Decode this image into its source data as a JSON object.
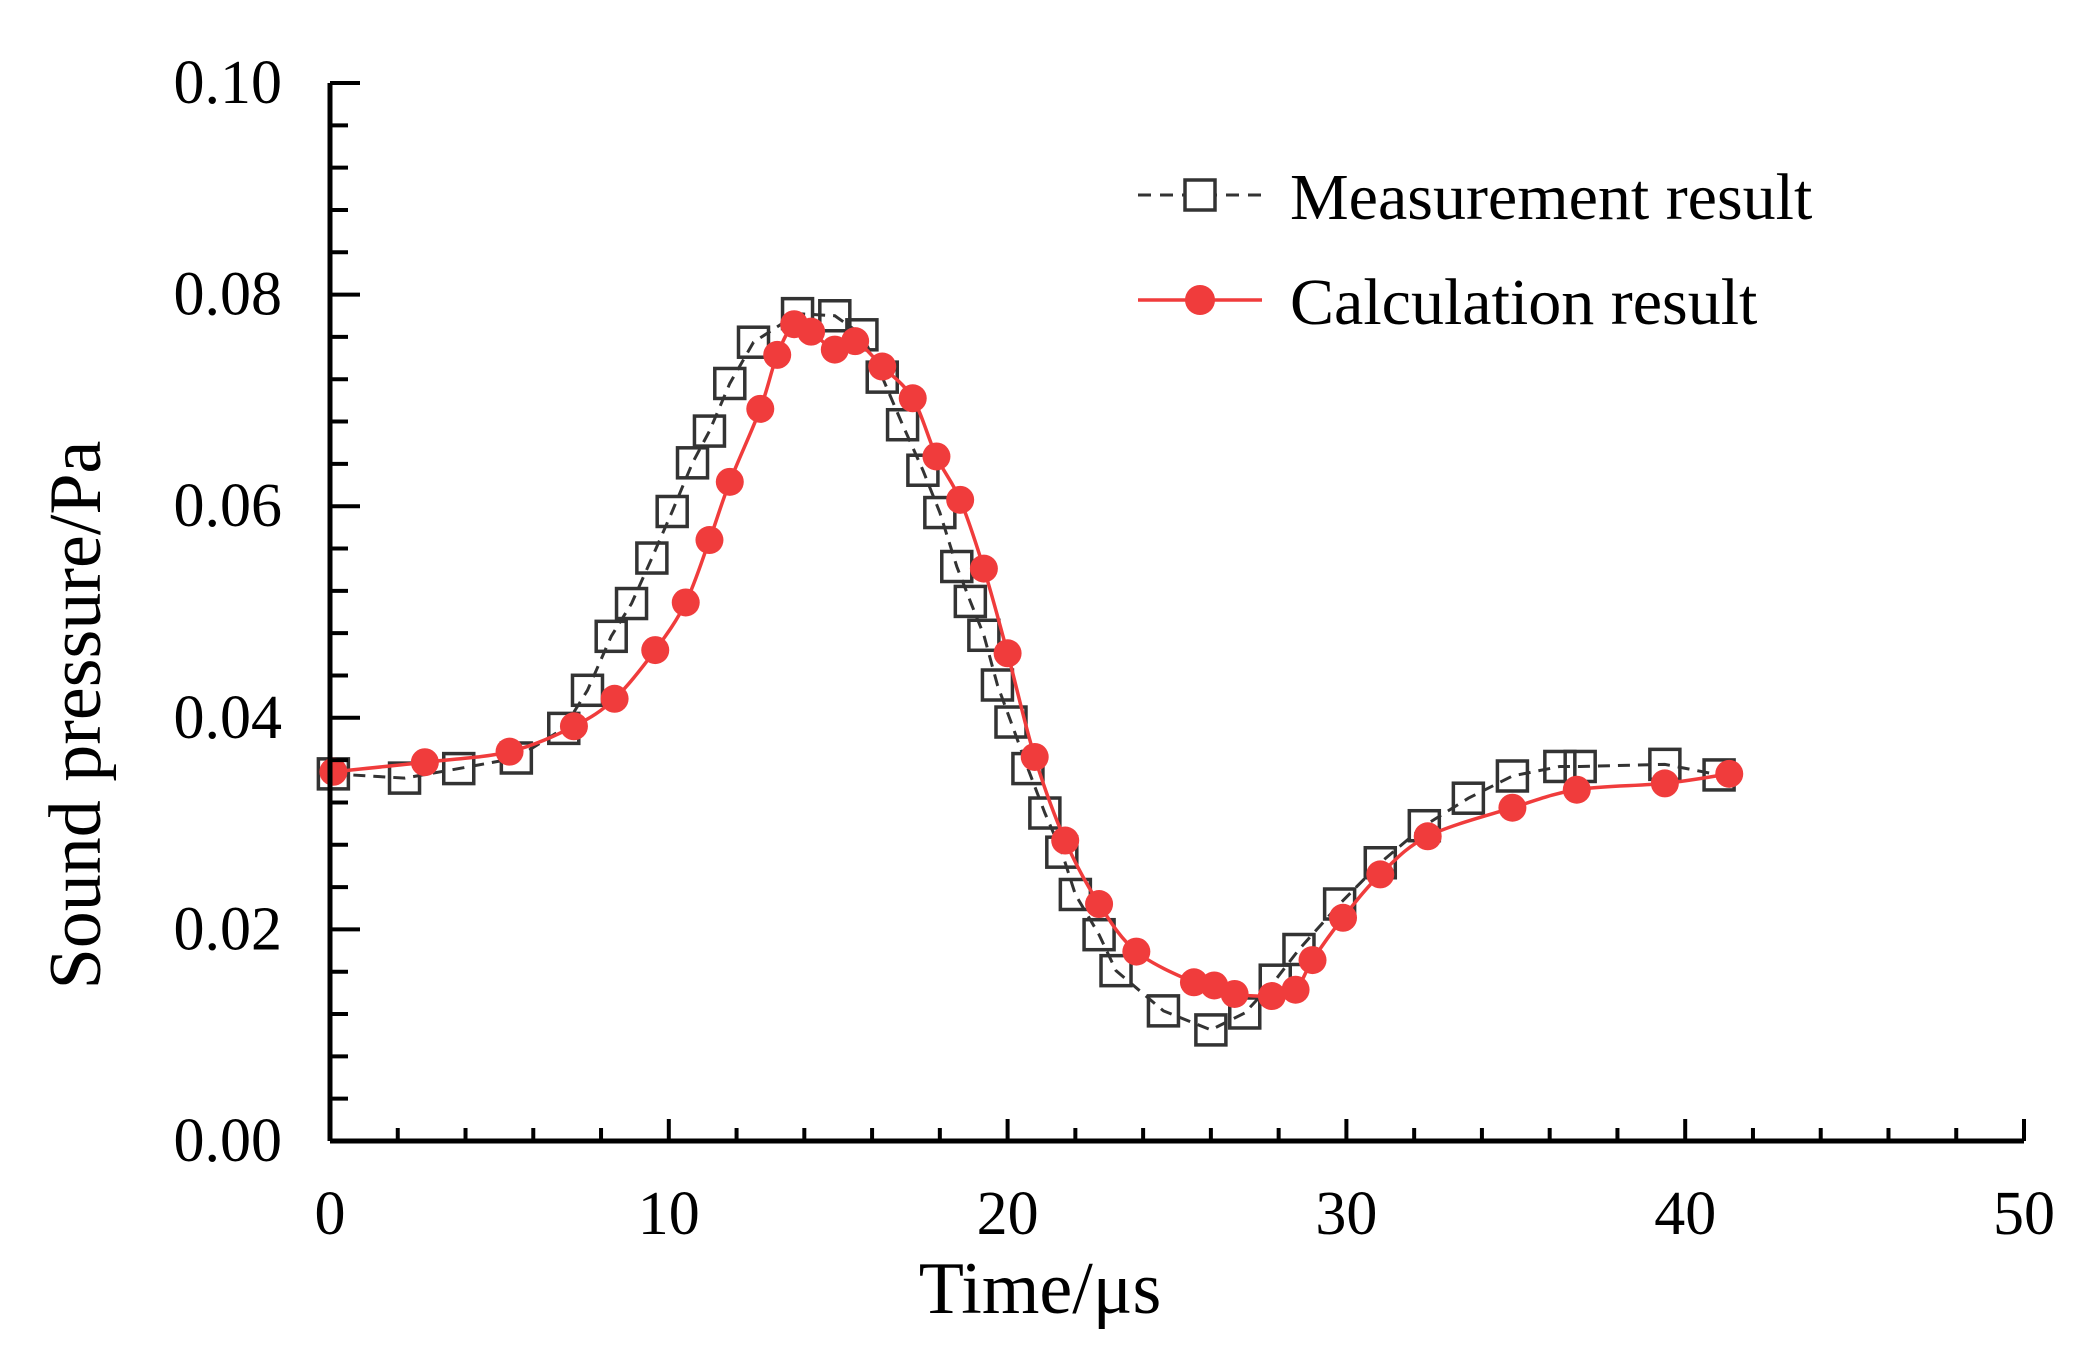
{
  "chart_data": {
    "type": "line",
    "title": "",
    "xlabel": "Time/μs",
    "ylabel": "Sound pressure/Pa",
    "xlim": [
      0,
      50
    ],
    "ylim": [
      0,
      0.1
    ],
    "x_ticks": [
      "0",
      "10",
      "20",
      "30",
      "40",
      "50"
    ],
    "y_ticks": [
      "0.00",
      "0.02",
      "0.04",
      "0.06",
      "0.08",
      "0.10"
    ],
    "grid": false,
    "legend_position": "top-right",
    "series": [
      {
        "name": "Measurement result",
        "color": "#333333",
        "line_style": "dashed",
        "marker": "open-square",
        "x": [
          0.1,
          2.2,
          3.8,
          5.5,
          6.9,
          7.6,
          8.3,
          8.9,
          9.5,
          10.1,
          10.7,
          11.2,
          11.8,
          12.5,
          13.8,
          14.9,
          15.7,
          16.3,
          16.9,
          17.5,
          18.0,
          18.5,
          18.9,
          19.3,
          19.7,
          20.1,
          20.6,
          21.1,
          21.6,
          22.0,
          22.7,
          23.2,
          24.6,
          26.0,
          27.0,
          27.9,
          28.6,
          29.8,
          31.0,
          32.3,
          33.6,
          34.9,
          36.3,
          36.9,
          39.4,
          41.0
        ],
        "values": [
          0.0347,
          0.0343,
          0.0352,
          0.0362,
          0.039,
          0.0426,
          0.0477,
          0.0508,
          0.0551,
          0.0595,
          0.0641,
          0.0671,
          0.0716,
          0.0755,
          0.0782,
          0.078,
          0.0762,
          0.0722,
          0.0677,
          0.0634,
          0.0594,
          0.0543,
          0.051,
          0.0478,
          0.0431,
          0.0396,
          0.0352,
          0.031,
          0.0273,
          0.0233,
          0.0195,
          0.0161,
          0.0123,
          0.0105,
          0.0121,
          0.0152,
          0.0181,
          0.0224,
          0.0263,
          0.0298,
          0.0324,
          0.0345,
          0.0354,
          0.0354,
          0.0356,
          0.0346
        ]
      },
      {
        "name": "Calculation result",
        "color": "#f03c3c",
        "line_style": "solid",
        "marker": "filled-circle",
        "x": [
          0.1,
          2.8,
          5.3,
          7.2,
          8.4,
          9.6,
          10.5,
          11.2,
          11.8,
          12.7,
          13.2,
          13.7,
          14.2,
          14.9,
          15.5,
          16.3,
          17.2,
          17.9,
          18.6,
          19.3,
          20.0,
          20.8,
          21.7,
          22.7,
          23.8,
          25.5,
          26.1,
          26.7,
          27.8,
          28.5,
          29.0,
          29.9,
          31.0,
          32.4,
          34.9,
          36.8,
          39.4,
          41.3
        ],
        "values": [
          0.0349,
          0.0358,
          0.0368,
          0.0392,
          0.0418,
          0.0464,
          0.0509,
          0.0568,
          0.0623,
          0.0692,
          0.0743,
          0.0772,
          0.0765,
          0.0748,
          0.0756,
          0.0732,
          0.0702,
          0.0647,
          0.0606,
          0.0541,
          0.0461,
          0.0363,
          0.0284,
          0.0224,
          0.0179,
          0.015,
          0.0147,
          0.0139,
          0.0137,
          0.0143,
          0.0171,
          0.0211,
          0.0252,
          0.0288,
          0.0315,
          0.0332,
          0.0338,
          0.0347
        ]
      }
    ]
  }
}
